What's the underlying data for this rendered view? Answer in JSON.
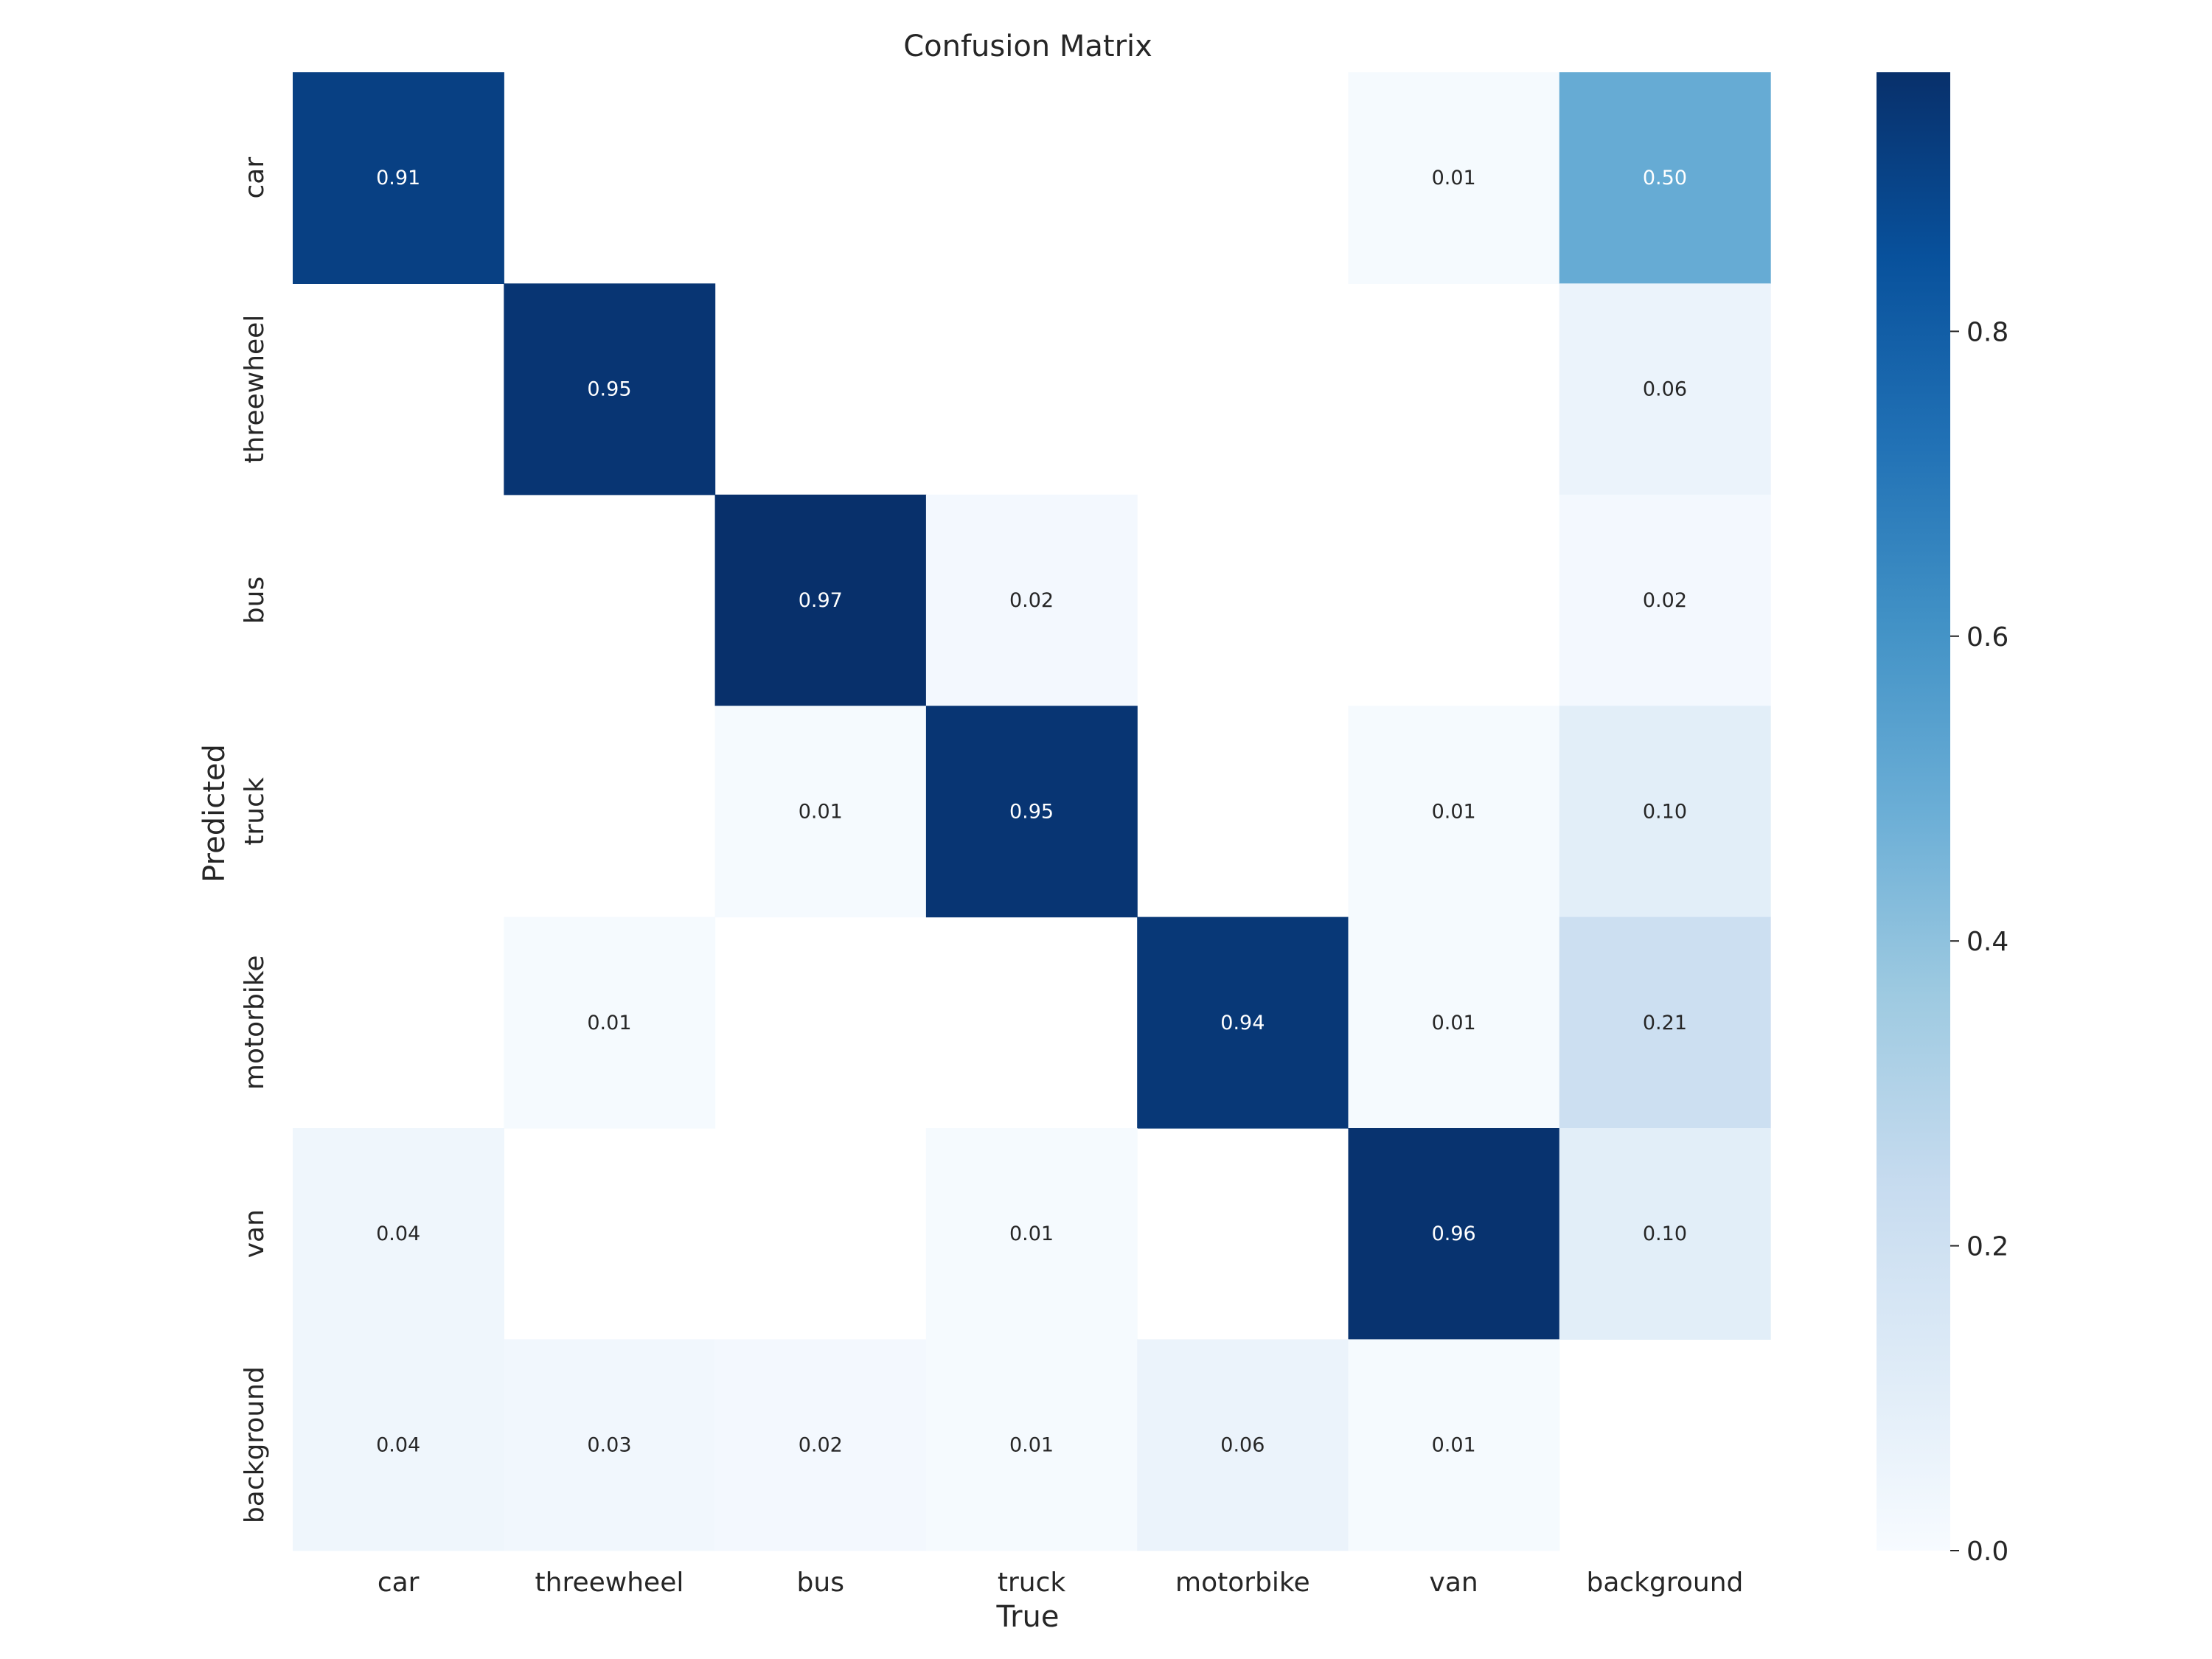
{
  "chart_data": {
    "type": "heatmap",
    "title": "Confusion Matrix",
    "xlabel": "True",
    "ylabel": "Predicted",
    "x_categories": [
      "car",
      "threewheel",
      "bus",
      "truck",
      "motorbike",
      "van",
      "background"
    ],
    "y_categories": [
      "car",
      "threewheel",
      "bus",
      "truck",
      "motorbike",
      "van",
      "background"
    ],
    "values": [
      [
        0.91,
        null,
        null,
        null,
        null,
        0.01,
        0.5
      ],
      [
        null,
        0.95,
        null,
        null,
        null,
        null,
        0.06
      ],
      [
        null,
        null,
        0.97,
        0.02,
        null,
        null,
        0.02
      ],
      [
        null,
        null,
        0.01,
        0.95,
        null,
        0.01,
        0.1
      ],
      [
        null,
        0.01,
        null,
        null,
        0.94,
        0.01,
        0.21
      ],
      [
        0.04,
        null,
        null,
        0.01,
        null,
        0.96,
        0.1
      ],
      [
        0.04,
        0.03,
        0.02,
        0.01,
        0.06,
        0.01,
        null
      ]
    ],
    "colorbar": {
      "vmin": 0.0,
      "vmax": 0.97,
      "ticks": [
        0.0,
        0.2,
        0.4,
        0.6,
        0.8
      ],
      "tick_labels": [
        "0.0",
        "0.2",
        "0.4",
        "0.6",
        "0.8"
      ],
      "colormap": "Blues"
    },
    "grid": false
  },
  "colors": {
    "blues_stops": [
      "#f7fbff",
      "#deebf7",
      "#c6dbef",
      "#9ecae1",
      "#6baed6",
      "#4292c6",
      "#2171b5",
      "#08519c",
      "#08306b"
    ],
    "text_dark": "#262626"
  }
}
